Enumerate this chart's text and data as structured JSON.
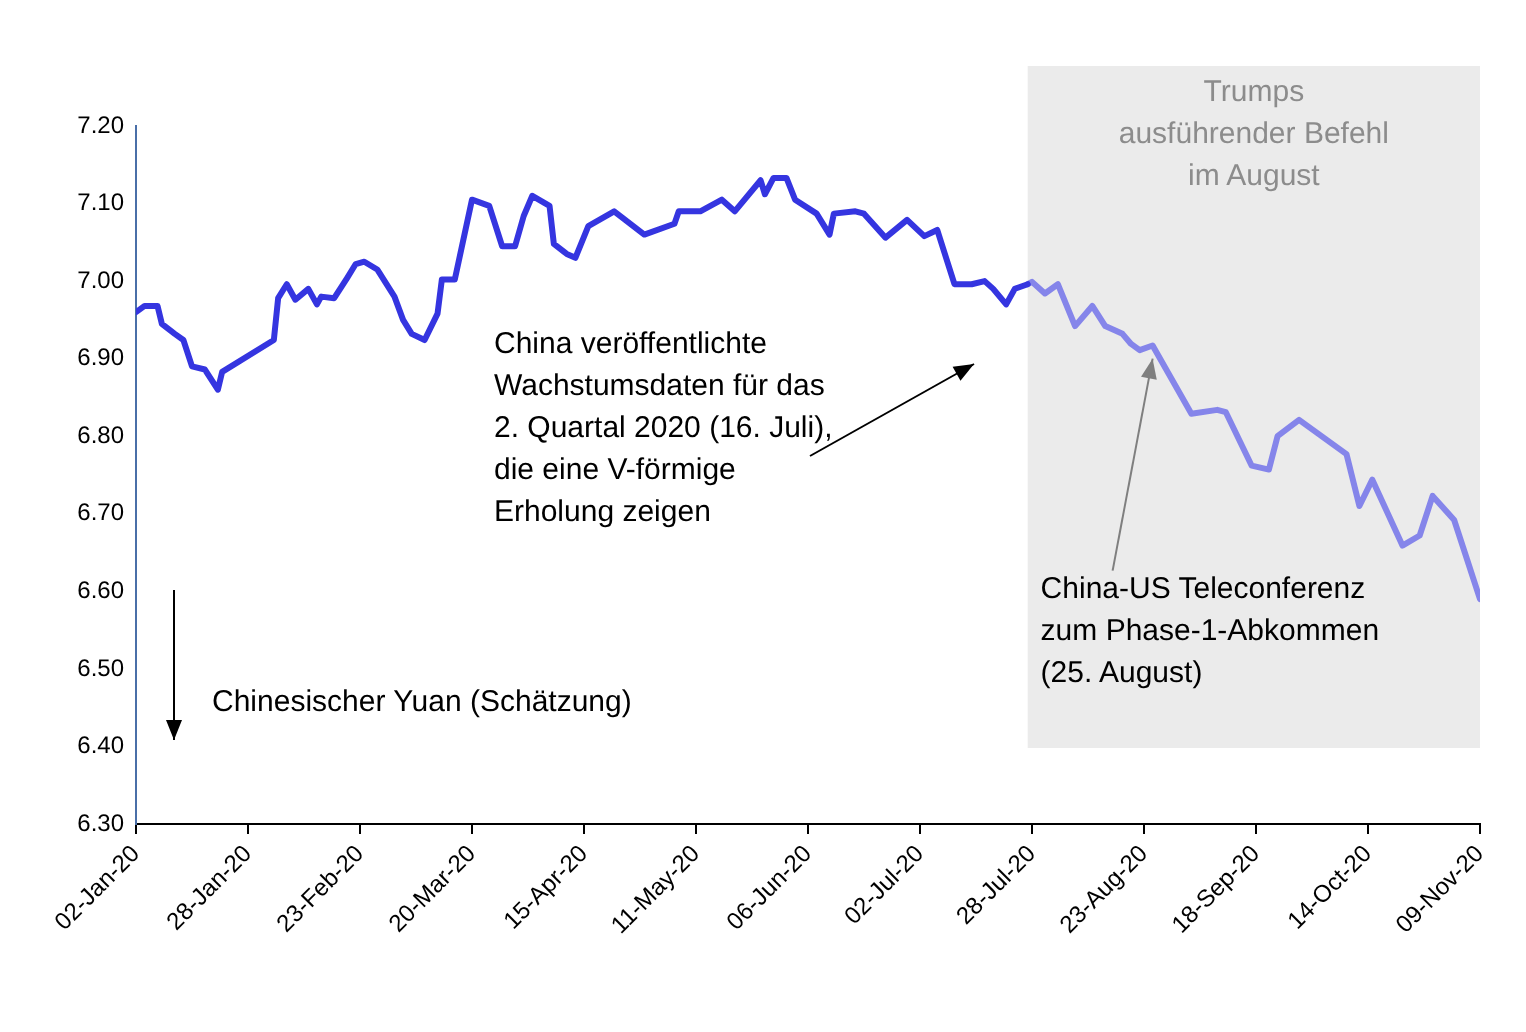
{
  "chart_data": {
    "type": "line",
    "series": [
      {
        "color": "#3535e0",
        "x": [
          "2020-01-02",
          "2020-01-04",
          "2020-01-07",
          "2020-01-08",
          "2020-01-11",
          "2020-01-13",
          "2020-01-15",
          "2020-01-18",
          "2020-01-21",
          "2020-01-22",
          "2020-02-03",
          "2020-02-04",
          "2020-02-06",
          "2020-02-08",
          "2020-02-11",
          "2020-02-13",
          "2020-02-14",
          "2020-02-17",
          "2020-02-20",
          "2020-02-22",
          "2020-02-24",
          "2020-02-27",
          "2020-03-02",
          "2020-03-04",
          "2020-03-06",
          "2020-03-09",
          "2020-03-12",
          "2020-03-13",
          "2020-03-16",
          "2020-03-20",
          "2020-03-24",
          "2020-03-27",
          "2020-03-30",
          "2020-04-01",
          "2020-04-03",
          "2020-04-07",
          "2020-04-08",
          "2020-04-11",
          "2020-04-13",
          "2020-04-16",
          "2020-04-22",
          "2020-04-29",
          "2020-05-06",
          "2020-05-07",
          "2020-05-12",
          "2020-05-17",
          "2020-05-20",
          "2020-05-26",
          "2020-05-27",
          "2020-05-29",
          "2020-06-01",
          "2020-06-03",
          "2020-06-08",
          "2020-06-11",
          "2020-06-12",
          "2020-06-17",
          "2020-06-19",
          "2020-06-24",
          "2020-06-29",
          "2020-07-03",
          "2020-07-06",
          "2020-07-10",
          "2020-07-14",
          "2020-07-17",
          "2020-07-19",
          "2020-07-22",
          "2020-07-24",
          "2020-07-27"
        ],
        "values": [
          6.96,
          6.968,
          6.968,
          6.945,
          6.932,
          6.924,
          6.89,
          6.886,
          6.86,
          6.883,
          6.924,
          6.978,
          6.996,
          6.976,
          6.99,
          6.97,
          6.98,
          6.978,
          7.004,
          7.022,
          7.025,
          7.015,
          6.98,
          6.95,
          6.932,
          6.924,
          6.958,
          7.002,
          7.002,
          7.105,
          7.097,
          7.045,
          7.045,
          7.084,
          7.11,
          7.097,
          7.048,
          7.035,
          7.03,
          7.071,
          7.09,
          7.06,
          7.074,
          7.09,
          7.09,
          7.105,
          7.09,
          7.13,
          7.112,
          7.133,
          7.133,
          7.105,
          7.087,
          7.06,
          7.087,
          7.09,
          7.087,
          7.056,
          7.079,
          7.058,
          7.066,
          6.996,
          6.996,
          7.0,
          6.99,
          6.97,
          6.99,
          6.996
        ]
      },
      {
        "color": "#8585ea",
        "x": [
          "2020-07-27",
          "2020-07-28",
          "2020-07-31",
          "2020-08-03",
          "2020-08-07",
          "2020-08-11",
          "2020-08-14",
          "2020-08-18",
          "2020-08-20",
          "2020-08-22",
          "2020-08-25",
          "2020-09-03",
          "2020-09-09",
          "2020-09-11",
          "2020-09-17",
          "2020-09-21",
          "2020-09-23",
          "2020-09-28",
          "2020-10-09",
          "2020-10-12",
          "2020-10-15",
          "2020-10-22",
          "2020-10-26",
          "2020-10-29",
          "2020-11-03",
          "2020-11-06",
          "2020-11-09"
        ],
        "values": [
          6.996,
          6.999,
          6.984,
          6.996,
          6.942,
          6.968,
          6.942,
          6.932,
          6.919,
          6.911,
          6.917,
          6.829,
          6.834,
          6.831,
          6.762,
          6.757,
          6.8,
          6.821,
          6.777,
          6.71,
          6.744,
          6.659,
          6.672,
          6.723,
          6.692,
          6.641,
          6.59
        ]
      }
    ],
    "xlim": [
      "2020-01-02",
      "2020-11-09"
    ],
    "xticks": [
      {
        "value": "2020-01-02",
        "label": "02-Jan-20"
      },
      {
        "value": "2020-01-28",
        "label": "28-Jan-20"
      },
      {
        "value": "2020-02-23",
        "label": "23-Feb-20"
      },
      {
        "value": "2020-03-20",
        "label": "20-Mar-20"
      },
      {
        "value": "2020-04-15",
        "label": "15-Apr-20"
      },
      {
        "value": "2020-05-11",
        "label": "11-May-20"
      },
      {
        "value": "2020-06-06",
        "label": "06-Jun-20"
      },
      {
        "value": "2020-07-02",
        "label": "02-Jul-20"
      },
      {
        "value": "2020-07-28",
        "label": "28-Jul-20"
      },
      {
        "value": "2020-08-23",
        "label": "23-Aug-20"
      },
      {
        "value": "2020-09-18",
        "label": "18-Sep-20"
      },
      {
        "value": "2020-10-14",
        "label": "14-Oct-20"
      },
      {
        "value": "2020-11-09",
        "label": "09-Nov-20"
      }
    ],
    "ylim": [
      6.3,
      7.2
    ],
    "yticks": [
      {
        "value": 6.3,
        "label": "6.30"
      },
      {
        "value": 6.4,
        "label": "6.40"
      },
      {
        "value": 6.5,
        "label": "6.50"
      },
      {
        "value": 6.6,
        "label": "6.60"
      },
      {
        "value": 6.7,
        "label": "6.70"
      },
      {
        "value": 6.8,
        "label": "6.80"
      },
      {
        "value": 6.9,
        "label": "6.90"
      },
      {
        "value": 7.0,
        "label": "7.00"
      },
      {
        "value": 7.1,
        "label": "7.10"
      },
      {
        "value": 7.2,
        "label": "7.20"
      }
    ],
    "bands": [
      {
        "axis": "x",
        "from": "2020-07-27",
        "to": "2020-11-09",
        "label": "Trumps ausführender Befehl im August",
        "color": "#ebebeb"
      }
    ],
    "annotations": [
      "Chinesischer Yuan (Schätzung)",
      "China veröffentlichte Wachstumsdaten für das 2. Quartal 2020 (16. Juli), die eine V-förmige Erholung zeigen",
      {
        "text": "China-US Teleconferenz zum Phase-1-Abkommen (25. August)",
        "x": "2020-08-25",
        "y": 6.9
      }
    ],
    "grid": false,
    "legend": false,
    "marker": "none",
    "line_style": "solid"
  }
}
